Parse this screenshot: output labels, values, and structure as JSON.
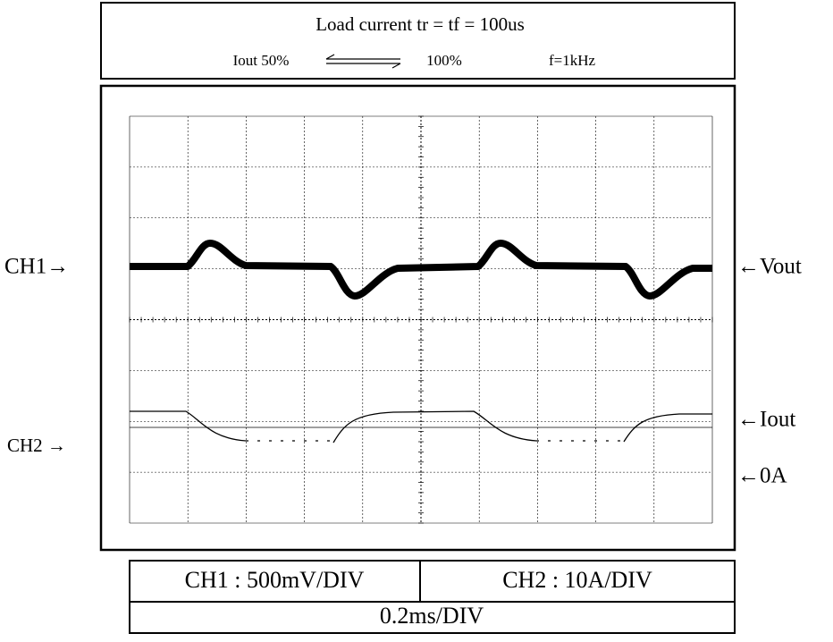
{
  "header": {
    "title": "Load current tr = tf = 100us",
    "left": "Iout 50%",
    "right": "100%",
    "freq": "f=1kHz"
  },
  "labels": {
    "ch1": "CH1→",
    "vout": "←Vout",
    "ch2": "CH2 →",
    "iout": "←Iout",
    "zero": "←0A"
  },
  "footer": {
    "ch1": "CH1 : 500mV/DIV",
    "ch2": "CH2 : 10A/DIV",
    "time": "0.2ms/DIV"
  }
}
